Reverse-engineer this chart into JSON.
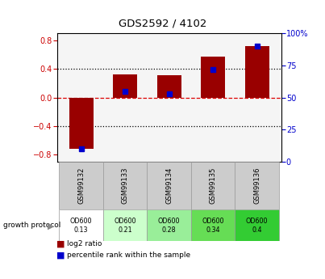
{
  "title": "GDS2592 / 4102",
  "samples": [
    "GSM99132",
    "GSM99133",
    "GSM99134",
    "GSM99135",
    "GSM99136"
  ],
  "log2_ratio": [
    -0.72,
    0.33,
    0.32,
    0.58,
    0.72
  ],
  "percentile_rank": [
    10,
    55,
    53,
    72,
    90
  ],
  "protocol_label": "growth protocol",
  "protocol_values": [
    "OD600\n0.13",
    "OD600\n0.21",
    "OD600\n0.28",
    "OD600\n0.34",
    "OD600\n0.4"
  ],
  "protocol_colors": [
    "#ffffff",
    "#ccffcc",
    "#99ee99",
    "#66dd55",
    "#33cc33"
  ],
  "bar_color": "#990000",
  "dot_color": "#0000cc",
  "ylim_left": [
    -0.9,
    0.9
  ],
  "ylim_right": [
    0,
    100
  ],
  "yticks_left": [
    -0.8,
    -0.4,
    0.0,
    0.4,
    0.8
  ],
  "yticks_right": [
    0,
    25,
    50,
    75,
    100
  ],
  "bg_color": "#f5f5f5",
  "label_log2": "log2 ratio",
  "label_percentile": "percentile rank within the sample"
}
